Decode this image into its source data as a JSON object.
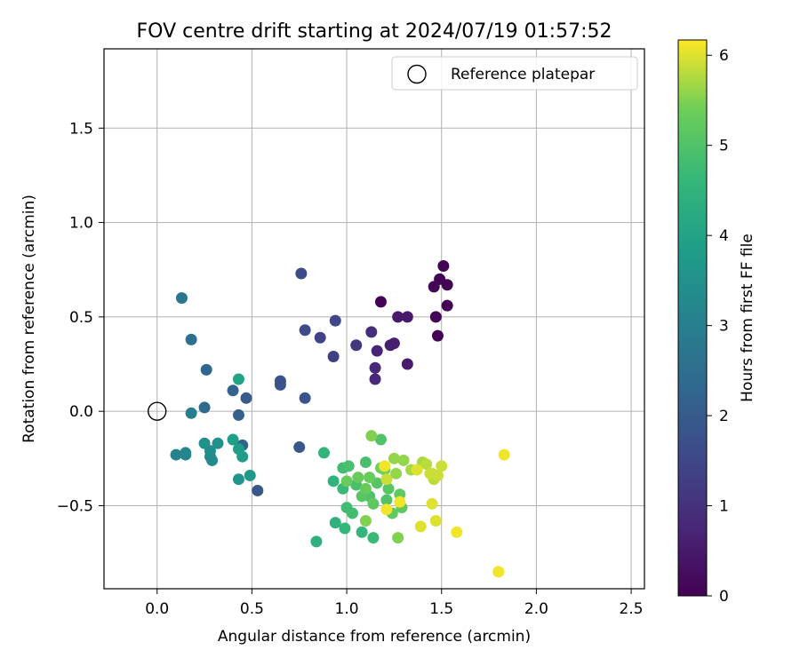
{
  "chart_data": {
    "type": "scatter",
    "title": "FOV centre drift starting at 2024/07/19 01:57:52",
    "xlabel": "Angular distance from reference (arcmin)",
    "ylabel": "Rotation from reference (arcmin)",
    "xlim": [
      -0.28,
      2.57
    ],
    "ylim": [
      -0.94,
      1.92
    ],
    "xticks": [
      0.0,
      0.5,
      1.0,
      1.5,
      2.0,
      2.5
    ],
    "xtick_labels": [
      "0.0",
      "0.5",
      "1.0",
      "1.5",
      "2.0",
      "2.5"
    ],
    "yticks": [
      -0.5,
      0.0,
      0.5,
      1.0,
      1.5
    ],
    "ytick_labels": [
      "−0.5",
      "0.0",
      "0.5",
      "1.0",
      "1.5"
    ],
    "grid": true,
    "legend": {
      "placement": "top-right",
      "entries": [
        "Reference platepar"
      ]
    },
    "reference_point": {
      "x": 0.0,
      "y": 0.0,
      "label": "Reference platepar"
    },
    "colorbar": {
      "label": "Hours from first FF file",
      "colormap": "viridis",
      "range": [
        0,
        6.17
      ],
      "ticks": [
        0,
        1,
        2,
        3,
        4,
        5,
        6
      ],
      "tick_labels": [
        "0",
        "1",
        "2",
        "3",
        "4",
        "5",
        "6"
      ]
    },
    "points": [
      {
        "x": 1.18,
        "y": 0.58,
        "c": 0.05
      },
      {
        "x": 1.51,
        "y": 0.77,
        "c": 0.05
      },
      {
        "x": 1.49,
        "y": 0.7,
        "c": 0.05
      },
      {
        "x": 1.53,
        "y": 0.67,
        "c": 0.05
      },
      {
        "x": 1.46,
        "y": 0.66,
        "c": 0.05
      },
      {
        "x": 1.53,
        "y": 0.56,
        "c": 0.05
      },
      {
        "x": 1.47,
        "y": 0.5,
        "c": 0.05
      },
      {
        "x": 1.48,
        "y": 0.4,
        "c": 0.05
      },
      {
        "x": 1.32,
        "y": 0.5,
        "c": 0.5
      },
      {
        "x": 1.27,
        "y": 0.5,
        "c": 0.5
      },
      {
        "x": 1.32,
        "y": 0.25,
        "c": 0.5
      },
      {
        "x": 1.25,
        "y": 0.36,
        "c": 0.6
      },
      {
        "x": 1.23,
        "y": 0.35,
        "c": 0.6
      },
      {
        "x": 1.16,
        "y": 0.32,
        "c": 0.7
      },
      {
        "x": 1.15,
        "y": 0.23,
        "c": 0.8
      },
      {
        "x": 1.15,
        "y": 0.17,
        "c": 0.8
      },
      {
        "x": 1.13,
        "y": 0.42,
        "c": 0.9
      },
      {
        "x": 1.05,
        "y": 0.35,
        "c": 1.1
      },
      {
        "x": 0.93,
        "y": 0.29,
        "c": 1.3
      },
      {
        "x": 0.86,
        "y": 0.39,
        "c": 1.4
      },
      {
        "x": 0.94,
        "y": 0.48,
        "c": 1.5
      },
      {
        "x": 0.78,
        "y": 0.43,
        "c": 1.6
      },
      {
        "x": 0.76,
        "y": 0.73,
        "c": 1.6
      },
      {
        "x": 0.78,
        "y": 0.07,
        "c": 1.8
      },
      {
        "x": 0.65,
        "y": 0.16,
        "c": 1.8
      },
      {
        "x": 0.65,
        "y": 0.14,
        "c": 1.8
      },
      {
        "x": 0.75,
        "y": -0.19,
        "c": 1.9
      },
      {
        "x": 0.53,
        "y": -0.42,
        "c": 1.9
      },
      {
        "x": 0.47,
        "y": 0.07,
        "c": 2.0
      },
      {
        "x": 0.43,
        "y": -0.02,
        "c": 2.1
      },
      {
        "x": 0.45,
        "y": -0.18,
        "c": 2.2
      },
      {
        "x": 0.4,
        "y": 0.11,
        "c": 2.2
      },
      {
        "x": 0.26,
        "y": 0.22,
        "c": 2.3
      },
      {
        "x": 0.25,
        "y": 0.02,
        "c": 2.4
      },
      {
        "x": 0.18,
        "y": 0.38,
        "c": 2.5
      },
      {
        "x": 0.13,
        "y": 0.6,
        "c": 2.7
      },
      {
        "x": 0.18,
        "y": -0.01,
        "c": 3.0
      },
      {
        "x": 0.1,
        "y": -0.23,
        "c": 3.1
      },
      {
        "x": 0.15,
        "y": -0.22,
        "c": 3.2
      },
      {
        "x": 0.15,
        "y": -0.23,
        "c": 3.2
      },
      {
        "x": 0.29,
        "y": -0.26,
        "c": 3.3
      },
      {
        "x": 0.28,
        "y": -0.24,
        "c": 3.3
      },
      {
        "x": 0.28,
        "y": -0.21,
        "c": 3.4
      },
      {
        "x": 0.25,
        "y": -0.17,
        "c": 3.5
      },
      {
        "x": 0.32,
        "y": -0.17,
        "c": 3.5
      },
      {
        "x": 0.43,
        "y": -0.36,
        "c": 3.6
      },
      {
        "x": 0.49,
        "y": -0.34,
        "c": 3.7
      },
      {
        "x": 0.43,
        "y": -0.2,
        "c": 3.8
      },
      {
        "x": 0.45,
        "y": -0.24,
        "c": 3.8
      },
      {
        "x": 0.4,
        "y": -0.15,
        "c": 3.9
      },
      {
        "x": 0.43,
        "y": 0.17,
        "c": 4.0
      },
      {
        "x": 0.84,
        "y": -0.69,
        "c": 4.4
      },
      {
        "x": 0.94,
        "y": -0.59,
        "c": 4.4
      },
      {
        "x": 0.88,
        "y": -0.22,
        "c": 4.5
      },
      {
        "x": 0.93,
        "y": -0.37,
        "c": 4.5
      },
      {
        "x": 0.99,
        "y": -0.62,
        "c": 4.6
      },
      {
        "x": 1.08,
        "y": -0.64,
        "c": 4.6
      },
      {
        "x": 1.14,
        "y": -0.67,
        "c": 4.7
      },
      {
        "x": 0.98,
        "y": -0.41,
        "c": 4.7
      },
      {
        "x": 0.98,
        "y": -0.3,
        "c": 4.8
      },
      {
        "x": 1.0,
        "y": -0.51,
        "c": 4.8
      },
      {
        "x": 1.03,
        "y": -0.54,
        "c": 4.8
      },
      {
        "x": 1.05,
        "y": -0.39,
        "c": 4.9
      },
      {
        "x": 1.1,
        "y": -0.27,
        "c": 4.9
      },
      {
        "x": 1.01,
        "y": -0.29,
        "c": 4.9
      },
      {
        "x": 1.18,
        "y": -0.15,
        "c": 5.0
      },
      {
        "x": 1.12,
        "y": -0.45,
        "c": 5.0
      },
      {
        "x": 1.21,
        "y": -0.47,
        "c": 5.0
      },
      {
        "x": 1.16,
        "y": -0.38,
        "c": 5.1
      },
      {
        "x": 1.08,
        "y": -0.45,
        "c": 5.1
      },
      {
        "x": 1.22,
        "y": -0.41,
        "c": 5.1
      },
      {
        "x": 1.24,
        "y": -0.54,
        "c": 5.2
      },
      {
        "x": 1.28,
        "y": -0.44,
        "c": 5.2
      },
      {
        "x": 1.29,
        "y": -0.51,
        "c": 5.2
      },
      {
        "x": 1.14,
        "y": -0.49,
        "c": 5.2
      },
      {
        "x": 1.0,
        "y": -0.37,
        "c": 5.3
      },
      {
        "x": 1.06,
        "y": -0.35,
        "c": 5.3
      },
      {
        "x": 1.1,
        "y": -0.41,
        "c": 5.3
      },
      {
        "x": 1.12,
        "y": -0.35,
        "c": 5.3
      },
      {
        "x": 1.18,
        "y": -0.3,
        "c": 5.4
      },
      {
        "x": 1.2,
        "y": -0.31,
        "c": 5.4
      },
      {
        "x": 1.1,
        "y": -0.58,
        "c": 5.5
      },
      {
        "x": 1.13,
        "y": -0.13,
        "c": 5.5
      },
      {
        "x": 1.27,
        "y": -0.67,
        "c": 5.5
      },
      {
        "x": 1.25,
        "y": -0.25,
        "c": 5.6
      },
      {
        "x": 1.26,
        "y": -0.33,
        "c": 5.6
      },
      {
        "x": 1.3,
        "y": -0.26,
        "c": 5.6
      },
      {
        "x": 1.34,
        "y": -0.31,
        "c": 5.7
      },
      {
        "x": 1.4,
        "y": -0.27,
        "c": 5.7
      },
      {
        "x": 1.42,
        "y": -0.28,
        "c": 5.8
      },
      {
        "x": 1.45,
        "y": -0.33,
        "c": 5.8
      },
      {
        "x": 1.46,
        "y": -0.36,
        "c": 5.8
      },
      {
        "x": 1.5,
        "y": -0.29,
        "c": 5.9
      },
      {
        "x": 1.48,
        "y": -0.34,
        "c": 5.9
      },
      {
        "x": 1.44,
        "y": -0.33,
        "c": 5.9
      },
      {
        "x": 1.45,
        "y": -0.49,
        "c": 6.0
      },
      {
        "x": 1.47,
        "y": -0.58,
        "c": 6.0
      },
      {
        "x": 1.39,
        "y": -0.61,
        "c": 6.0
      },
      {
        "x": 1.58,
        "y": -0.64,
        "c": 6.1
      },
      {
        "x": 1.83,
        "y": -0.23,
        "c": 6.1
      },
      {
        "x": 1.8,
        "y": -0.85,
        "c": 6.1
      },
      {
        "x": 1.28,
        "y": -0.48,
        "c": 6.1
      },
      {
        "x": 1.21,
        "y": -0.52,
        "c": 6.1
      },
      {
        "x": 1.2,
        "y": -0.29,
        "c": 6.1
      },
      {
        "x": 1.37,
        "y": -0.31,
        "c": 6.0
      },
      {
        "x": 1.21,
        "y": -0.36,
        "c": 5.9
      }
    ]
  }
}
